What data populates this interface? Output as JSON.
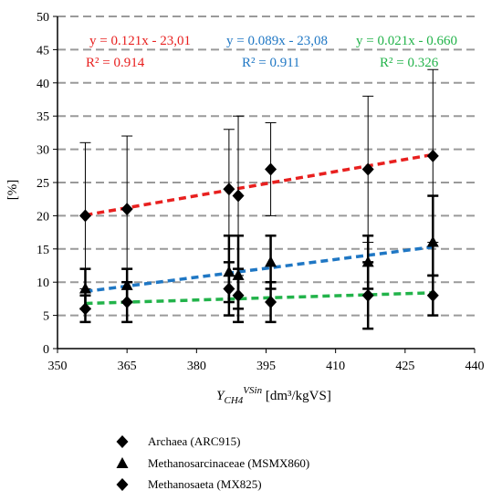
{
  "chart_data": {
    "type": "scatter",
    "xlim": [
      350,
      440
    ],
    "ylim": [
      0,
      50
    ],
    "x_ticks": [
      "350",
      "365",
      "380",
      "395",
      "410",
      "425",
      "440"
    ],
    "y_ticks": [
      "0",
      "5",
      "10",
      "15",
      "20",
      "25",
      "30",
      "35",
      "40",
      "45",
      "50"
    ],
    "ylabel": "[%]",
    "xlabel_main": "Y",
    "xlabel_sub": "CH4",
    "xlabel_sup": "VSin",
    "xlabel_unit": " [dm³/kgVS]",
    "grid": "horizontal-dashed",
    "legend_position": "bottom",
    "series": [
      {
        "name": "Archaea (ARC915)",
        "marker": "diamond",
        "color": "#000000",
        "fit_color": "#e8201f",
        "equation": "y = 0.121x - 23,01",
        "r2": "R² = 0.914",
        "points": [
          {
            "x": 356,
            "y": 20,
            "lo": 9,
            "hi": 31
          },
          {
            "x": 365,
            "y": 21,
            "lo": 10,
            "hi": 32
          },
          {
            "x": 387,
            "y": 24,
            "lo": 15,
            "hi": 33
          },
          {
            "x": 389,
            "y": 23,
            "lo": 11,
            "hi": 35
          },
          {
            "x": 396,
            "y": 27,
            "lo": 20,
            "hi": 34
          },
          {
            "x": 417,
            "y": 27,
            "lo": 16,
            "hi": 38
          },
          {
            "x": 431,
            "y": 29,
            "lo": 16,
            "hi": 42
          }
        ],
        "fit": [
          {
            "x": 356,
            "y": 20.1
          },
          {
            "x": 431,
            "y": 29.2
          }
        ]
      },
      {
        "name": "Methanosarcinaceae (MSMX860)",
        "marker": "triangle",
        "color": "#000000",
        "fit_color": "#1f77c4",
        "equation": "y = 0.089x - 23,08",
        "r2": "R² = 0.911",
        "points": [
          {
            "x": 356,
            "y": 9,
            "lo": 6,
            "hi": 12
          },
          {
            "x": 365,
            "y": 9.5,
            "lo": 7,
            "hi": 12
          },
          {
            "x": 387,
            "y": 11.5,
            "lo": 7,
            "hi": 17
          },
          {
            "x": 389,
            "y": 11,
            "lo": 6,
            "hi": 17
          },
          {
            "x": 396,
            "y": 13,
            "lo": 9,
            "hi": 17
          },
          {
            "x": 417,
            "y": 13,
            "lo": 9,
            "hi": 17
          },
          {
            "x": 431,
            "y": 16,
            "lo": 11,
            "hi": 23
          }
        ],
        "fit": [
          {
            "x": 356,
            "y": 8.6
          },
          {
            "x": 431,
            "y": 15.3
          }
        ]
      },
      {
        "name": "Methanosaeta (MX825)",
        "marker": "diamond",
        "color": "#000000",
        "fit_color": "#22b34a",
        "equation": "y = 0.021x - 0.660",
        "r2": "R² = 0.326",
        "points": [
          {
            "x": 356,
            "y": 6,
            "lo": 4,
            "hi": 8
          },
          {
            "x": 365,
            "y": 7,
            "lo": 4,
            "hi": 10
          },
          {
            "x": 387,
            "y": 9,
            "lo": 5,
            "hi": 13
          },
          {
            "x": 389,
            "y": 8,
            "lo": 4,
            "hi": 12
          },
          {
            "x": 396,
            "y": 7,
            "lo": 4,
            "hi": 10
          },
          {
            "x": 417,
            "y": 8,
            "lo": 3,
            "hi": 13
          },
          {
            "x": 431,
            "y": 8,
            "lo": 5,
            "hi": 11
          }
        ],
        "fit": [
          {
            "x": 356,
            "y": 6.8
          },
          {
            "x": 431,
            "y": 8.4
          }
        ]
      }
    ]
  }
}
